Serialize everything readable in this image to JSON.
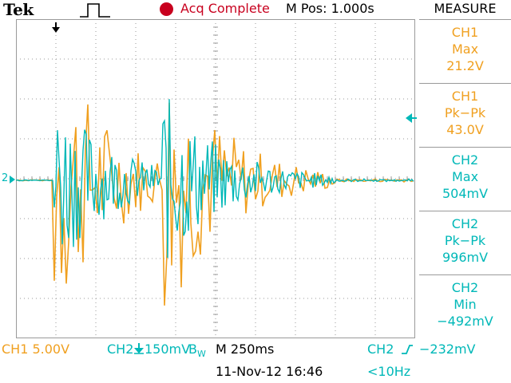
{
  "header": {
    "brand": "Tek",
    "trigger_icon": "pulse-icon",
    "acq_status": "Acq Complete",
    "acq_color": "#c8001e",
    "mpos": "M Pos: 1.000s",
    "measure_title": "MEASURE"
  },
  "measurements": [
    {
      "channel": "CH1",
      "type": "Max",
      "value": "21.2V",
      "color": "#f0a020"
    },
    {
      "channel": "CH1",
      "type": "Pk−Pk",
      "value": "43.0V",
      "color": "#f0a020"
    },
    {
      "channel": "CH2",
      "type": "Max",
      "value": "504mV",
      "color": "#00b8b8"
    },
    {
      "channel": "CH2",
      "type": "Pk−Pk",
      "value": "996mV",
      "color": "#00b8b8"
    },
    {
      "channel": "CH2",
      "type": "Min",
      "value": "−492mV",
      "color": "#00b8b8"
    }
  ],
  "footer": {
    "ch1_scale": "CH1  5.00V",
    "ch2_scale": "CH2",
    "ch2_scale_value": "150mV",
    "bw_mark": "B",
    "bw_sub": "W",
    "timebase": "M 250ms",
    "trigger_channel": "CH2",
    "trigger_level": "−232mV",
    "date": "11-Nov-12 16:46",
    "freq": "<10Hz"
  },
  "markers": {
    "ch2_ground": "2"
  },
  "colors": {
    "ch1": "#f0a020",
    "ch2": "#00b8b8",
    "grid": "#9a9a9a"
  }
}
